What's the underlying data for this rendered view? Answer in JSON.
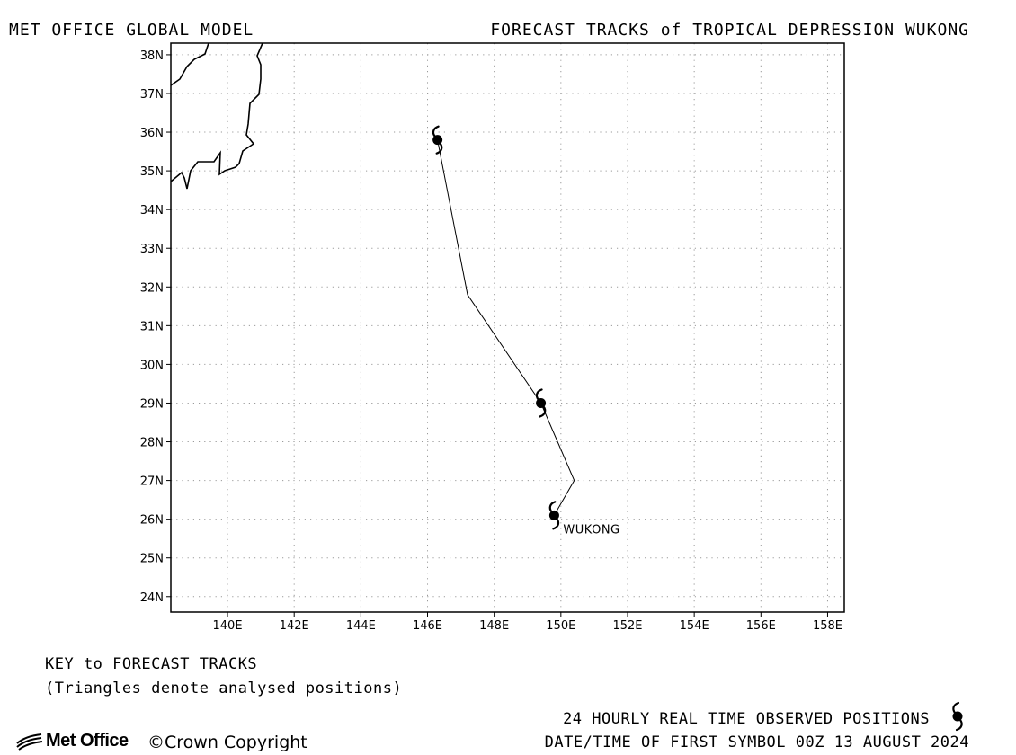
{
  "header": {
    "left_title": "MET OFFICE GLOBAL MODEL",
    "right_title": "FORECAST TRACKS of TROPICAL DEPRESSION WUKONG"
  },
  "map": {
    "lon_range": [
      138.3,
      158.5
    ],
    "lat_range": [
      23.6,
      38.3
    ],
    "lon_ticks": [
      "140E",
      "142E",
      "144E",
      "146E",
      "148E",
      "150E",
      "152E",
      "154E",
      "156E",
      "158E"
    ],
    "lat_ticks": [
      "24N",
      "25N",
      "26N",
      "27N",
      "28N",
      "29N",
      "30N",
      "31N",
      "32N",
      "33N",
      "34N",
      "35N",
      "36N",
      "37N",
      "38N"
    ],
    "grid": true,
    "grid_style": "dotted",
    "coastline_icon": "japan-coastline",
    "storm": {
      "name": "WUKONG",
      "track": [
        [
          149.8,
          26.1
        ],
        [
          150.4,
          27.0
        ],
        [
          149.4,
          29.0
        ],
        [
          147.2,
          31.8
        ],
        [
          146.3,
          35.8
        ]
      ],
      "symbols": [
        [
          149.8,
          26.1
        ],
        [
          149.4,
          29.0
        ],
        [
          146.3,
          35.8
        ]
      ],
      "symbol_icon": "tropical-cyclone-icon"
    }
  },
  "key": {
    "title": "KEY to FORECAST TRACKS",
    "note": "(Triangles denote analysed positions)"
  },
  "footer": {
    "logo_text": "Met Office",
    "copyright_symbol": "©",
    "copyright_text": "Crown Copyright",
    "observed_label": "24 HOURLY REAL TIME OBSERVED POSITIONS",
    "first_symbol": "DATE/TIME OF FIRST SYMBOL 00Z 13 AUGUST 2024"
  }
}
